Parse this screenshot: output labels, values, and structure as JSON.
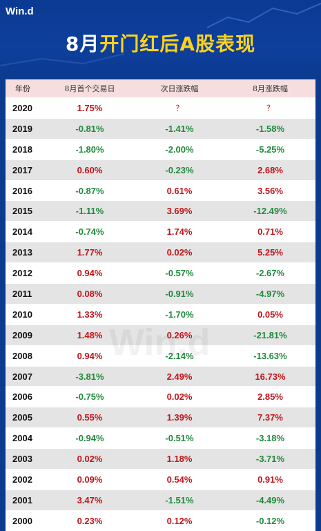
{
  "brand": {
    "logo": "Win.d",
    "watermark": "Win.d"
  },
  "header": {
    "title_prefix": "8月",
    "title_highlight": "开门红后A股表现"
  },
  "table": {
    "columns": [
      "年份",
      "8月首个交易日",
      "次日涨跌幅",
      "8月涨跌幅"
    ],
    "rows": [
      [
        "2020",
        "1.75%",
        "？",
        "？"
      ],
      [
        "2019",
        "-0.81%",
        "-1.41%",
        "-1.58%"
      ],
      [
        "2018",
        "-1.80%",
        "-2.00%",
        "-5.25%"
      ],
      [
        "2017",
        "0.60%",
        "-0.23%",
        "2.68%"
      ],
      [
        "2016",
        "-0.87%",
        "0.61%",
        "3.56%"
      ],
      [
        "2015",
        "-1.11%",
        "3.69%",
        "-12.49%"
      ],
      [
        "2014",
        "-0.74%",
        "1.74%",
        "0.71%"
      ],
      [
        "2013",
        "1.77%",
        "0.02%",
        "5.25%"
      ],
      [
        "2012",
        "0.94%",
        "-0.57%",
        "-2.67%"
      ],
      [
        "2011",
        "0.08%",
        "-0.91%",
        "-4.97%"
      ],
      [
        "2010",
        "1.33%",
        "-1.70%",
        "0.05%"
      ],
      [
        "2009",
        "1.48%",
        "0.26%",
        "-21.81%"
      ],
      [
        "2008",
        "0.94%",
        "-2.14%",
        "-13.63%"
      ],
      [
        "2007",
        "-3.81%",
        "2.49%",
        "16.73%"
      ],
      [
        "2006",
        "-0.75%",
        "0.02%",
        "2.85%"
      ],
      [
        "2005",
        "0.55%",
        "1.39%",
        "7.37%"
      ],
      [
        "2004",
        "-0.94%",
        "-0.51%",
        "-3.18%"
      ],
      [
        "2003",
        "0.02%",
        "1.18%",
        "-3.71%"
      ],
      [
        "2002",
        "0.09%",
        "0.54%",
        "0.91%"
      ],
      [
        "2001",
        "3.47%",
        "-1.51%",
        "-4.49%"
      ],
      [
        "2000",
        "0.23%",
        "0.12%",
        "-0.12%"
      ]
    ]
  },
  "colors": {
    "positive": "#c0151b",
    "negative": "#1f8a3b",
    "title_highlight": "#ffd21a",
    "background": "#0c3a8f"
  }
}
